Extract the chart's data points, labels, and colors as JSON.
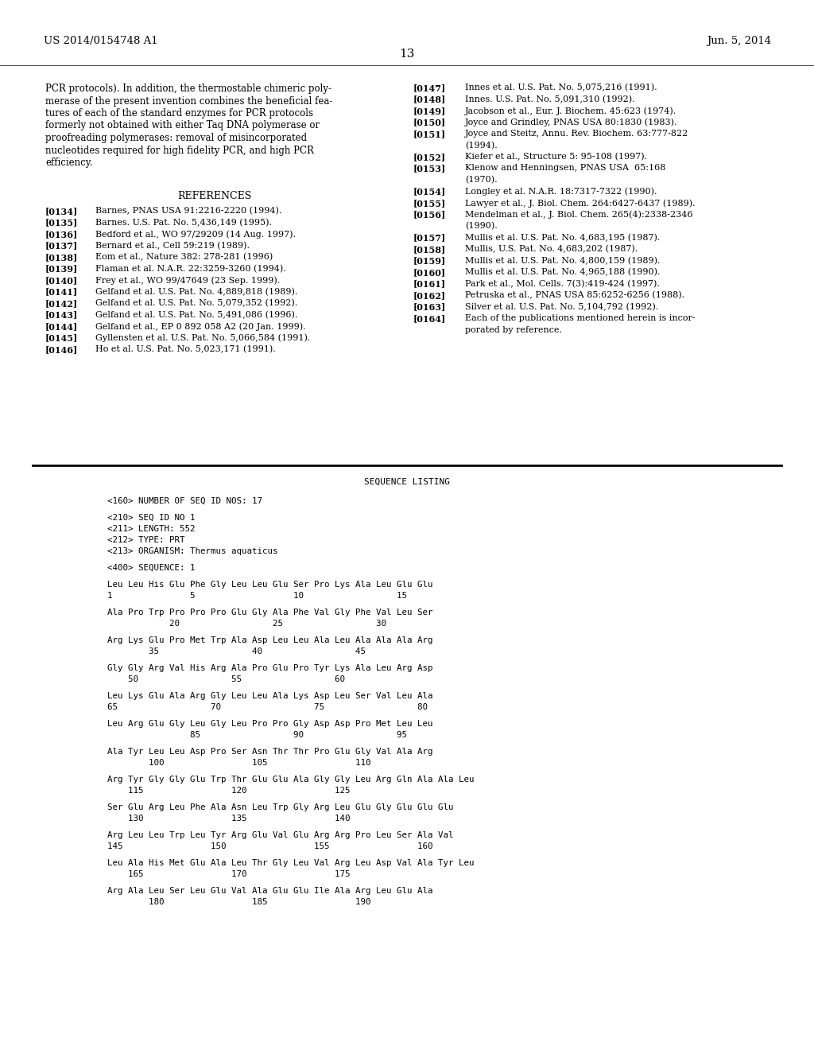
{
  "header_left": "US 2014/0154748 A1",
  "header_right": "Jun. 5, 2014",
  "page_number": "13",
  "background_color": "#ffffff",
  "text_color": "#000000",
  "body_left_paragraph": [
    "PCR protocols). In addition, the thermostable chimeric poly-",
    "merase of the present invention combines the beneficial fea-",
    "tures of each of the standard enzymes for PCR protocols",
    "formerly not obtained with either Taq DNA polymerase or",
    "proofreading polymerases: removal of misincorporated",
    "nucleotides required for high fidelity PCR, and high PCR",
    "efficiency."
  ],
  "references_title": "REFERENCES",
  "references_left": [
    {
      "tag": "[0134]",
      "text": "Barnes, PNAS USA 91:2216-2220 (1994)."
    },
    {
      "tag": "[0135]",
      "text": "Barnes. U.S. Pat. No. 5,436,149 (1995)."
    },
    {
      "tag": "[0136]",
      "text": "Bedford et al., WO 97/29209 (14 Aug. 1997)."
    },
    {
      "tag": "[0137]",
      "text": "Bernard et al., Cell 59:219 (1989)."
    },
    {
      "tag": "[0138]",
      "text": "Eom et al., Nature 382: 278-281 (1996)"
    },
    {
      "tag": "[0139]",
      "text": "Flaman et al. N.A.R. 22:3259-3260 (1994)."
    },
    {
      "tag": "[0140]",
      "text": "Frey et al., WO 99/47649 (23 Sep. 1999)."
    },
    {
      "tag": "[0141]",
      "text": "Gelfand et al. U.S. Pat. No. 4,889,818 (1989)."
    },
    {
      "tag": "[0142]",
      "text": "Gelfand et al. U.S. Pat. No. 5,079,352 (1992)."
    },
    {
      "tag": "[0143]",
      "text": "Gelfand et al. U.S. Pat. No. 5,491,086 (1996)."
    },
    {
      "tag": "[0144]",
      "text": "Gelfand et al., EP 0 892 058 A2 (20 Jan. 1999)."
    },
    {
      "tag": "[0145]",
      "text": "Gyllensten et al. U.S. Pat. No. 5,066,584 (1991)."
    },
    {
      "tag": "[0146]",
      "text": "Ho et al. U.S. Pat. No. 5,023,171 (1991)."
    }
  ],
  "references_right": [
    {
      "tag": "[0147]",
      "lines": [
        "Innes et al. U.S. Pat. No. 5,075,216 (1991)."
      ]
    },
    {
      "tag": "[0148]",
      "lines": [
        "Innes. U.S. Pat. No. 5,091,310 (1992)."
      ]
    },
    {
      "tag": "[0149]",
      "lines": [
        "Jacobson et al., Eur. J. Biochem. 45:623 (1974)."
      ]
    },
    {
      "tag": "[0150]",
      "lines": [
        "Joyce and Grindley, PNAS USA 80:1830 (1983)."
      ]
    },
    {
      "tag": "[0151]",
      "lines": [
        "Joyce and Steitz, Annu. Rev. Biochem. 63:777-822",
        "(1994)."
      ]
    },
    {
      "tag": "[0152]",
      "lines": [
        "Kiefer et al., Structure 5: 95-108 (1997)."
      ]
    },
    {
      "tag": "[0153]",
      "lines": [
        "Klenow and Henningsen, PNAS USA  65:168",
        "(1970)."
      ]
    },
    {
      "tag": "[0154]",
      "lines": [
        "Longley et al. N.A.R. 18:7317-7322 (1990)."
      ]
    },
    {
      "tag": "[0155]",
      "lines": [
        "Lawyer et al., J. Biol. Chem. 264:6427-6437 (1989)."
      ]
    },
    {
      "tag": "[0156]",
      "lines": [
        "Mendelman et al., J. Biol. Chem. 265(4):2338-2346",
        "(1990)."
      ]
    },
    {
      "tag": "[0157]",
      "lines": [
        "Mullis et al. U.S. Pat. No. 4,683,195 (1987)."
      ]
    },
    {
      "tag": "[0158]",
      "lines": [
        "Mullis, U.S. Pat. No. 4,683,202 (1987)."
      ]
    },
    {
      "tag": "[0159]",
      "lines": [
        "Mullis et al. U.S. Pat. No. 4,800,159 (1989)."
      ]
    },
    {
      "tag": "[0160]",
      "lines": [
        "Mullis et al. U.S. Pat. No. 4,965,188 (1990)."
      ]
    },
    {
      "tag": "[0161]",
      "lines": [
        "Park et al., Mol. Cells. 7(3):419-424 (1997)."
      ]
    },
    {
      "tag": "[0162]",
      "lines": [
        "Petruska et al., PNAS USA 85:6252-6256 (1988)."
      ]
    },
    {
      "tag": "[0163]",
      "lines": [
        "Silver et al. U.S. Pat. No. 5,104,792 (1992)."
      ]
    },
    {
      "tag": "[0164]",
      "lines": [
        "Each of the publications mentioned herein is incor-",
        "porated by reference."
      ]
    }
  ],
  "sequence_listing_title": "SEQUENCE LISTING",
  "sequence_lines": [
    "<160> NUMBER OF SEQ ID NOS: 17",
    "",
    "<210> SEQ ID NO 1",
    "<211> LENGTH: 552",
    "<212> TYPE: PRT",
    "<213> ORGANISM: Thermus aquaticus",
    "",
    "<400> SEQUENCE: 1",
    "",
    "Leu Leu His Glu Phe Gly Leu Leu Glu Ser Pro Lys Ala Leu Glu Glu",
    "1               5                   10                  15",
    "",
    "Ala Pro Trp Pro Pro Pro Glu Gly Ala Phe Val Gly Phe Val Leu Ser",
    "            20                  25                  30",
    "",
    "Arg Lys Glu Pro Met Trp Ala Asp Leu Leu Ala Leu Ala Ala Ala Arg",
    "        35                  40                  45",
    "",
    "Gly Gly Arg Val His Arg Ala Pro Glu Pro Tyr Lys Ala Leu Arg Asp",
    "    50                  55                  60",
    "",
    "Leu Lys Glu Ala Arg Gly Leu Leu Ala Lys Asp Leu Ser Val Leu Ala",
    "65                  70                  75                  80",
    "",
    "Leu Arg Glu Gly Leu Gly Leu Pro Pro Gly Asp Asp Pro Met Leu Leu",
    "                85                  90                  95",
    "",
    "Ala Tyr Leu Leu Asp Pro Ser Asn Thr Thr Pro Glu Gly Val Ala Arg",
    "        100                 105                 110",
    "",
    "Arg Tyr Gly Gly Glu Trp Thr Glu Glu Ala Gly Gly Leu Arg Gln Ala Ala Leu",
    "    115                 120                 125",
    "",
    "Ser Glu Arg Leu Phe Ala Asn Leu Trp Gly Arg Leu Glu Gly Glu Glu Glu",
    "    130                 135                 140",
    "",
    "Arg Leu Leu Trp Leu Tyr Arg Glu Val Glu Arg Arg Pro Leu Ser Ala Val",
    "145                 150                 155                 160",
    "",
    "Leu Ala His Met Glu Ala Leu Thr Gly Leu Val Arg Leu Asp Val Ala Tyr Leu",
    "    165                 170                 175",
    "",
    "Arg Ala Leu Ser Leu Glu Val Ala Glu Glu Ile Ala Arg Leu Glu Ala",
    "        180                 185                 190"
  ]
}
